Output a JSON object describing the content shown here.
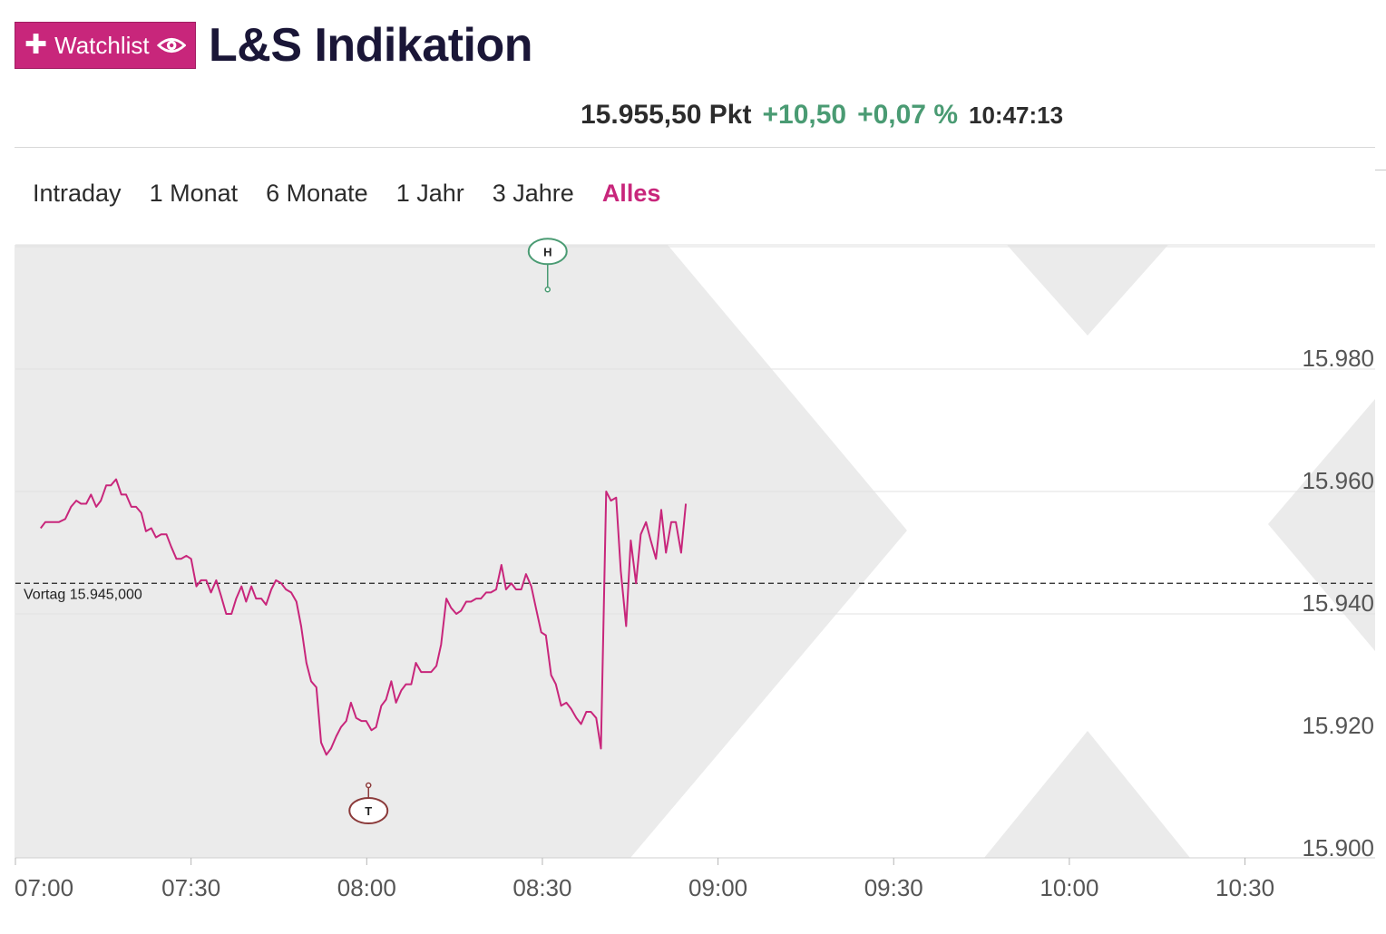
{
  "header": {
    "watchlist_label": "Watchlist",
    "title": "L&S Indikation",
    "accent_color": "#c8267b"
  },
  "quote": {
    "price": "15.955,50 Pkt",
    "change_abs": "+10,50",
    "change_pct": "+0,07 %",
    "time": "10:47:13",
    "positive_color": "#4a9b73"
  },
  "tabs": [
    {
      "label": "Intraday",
      "active": false
    },
    {
      "label": "1 Monat",
      "active": false
    },
    {
      "label": "6 Monate",
      "active": false
    },
    {
      "label": "1 Jahr",
      "active": false
    },
    {
      "label": "3 Jahre",
      "active": false
    },
    {
      "label": "Alles",
      "active": true
    }
  ],
  "chart_data": {
    "type": "line",
    "title": "",
    "xlabel": "",
    "ylabel": "",
    "x_ticks": [
      "07:00",
      "07:30",
      "08:00",
      "08:30",
      "09:00",
      "09:30",
      "10:00",
      "10:30"
    ],
    "y_ticks": [
      "15.900",
      "15.920",
      "15.940",
      "15.960",
      "15.980"
    ],
    "ylim": [
      15900,
      15990
    ],
    "xlim_minutes_from_start": [
      0,
      115
    ],
    "grid": true,
    "line_color": "#c8267b",
    "reference_line": {
      "label": "Vortag 15.945,000",
      "value": 15945
    },
    "markers": [
      {
        "label": "T",
        "meaning": "low",
        "x_minutes_from_start": 60.3,
        "value": 15912,
        "color": "#8b3a3a"
      },
      {
        "label": "H",
        "meaning": "high",
        "x_minutes_from_start": 90.9,
        "value": 15993,
        "color": "#4a9b73"
      }
    ],
    "series": [
      {
        "points": [
          [
            4.3,
            15954
          ],
          [
            5.1,
            15955
          ],
          [
            6.3,
            15955
          ],
          [
            7.4,
            15955
          ],
          [
            8.5,
            15955.5
          ],
          [
            9.5,
            15957.5
          ],
          [
            10.4,
            15958.5
          ],
          [
            11.2,
            15958
          ],
          [
            12.1,
            15958
          ],
          [
            12.9,
            15959.5
          ],
          [
            13.8,
            15957.5
          ],
          [
            14.6,
            15958.5
          ],
          [
            15.5,
            15961
          ],
          [
            16.3,
            15961
          ],
          [
            17.2,
            15962
          ],
          [
            18.1,
            15959.5
          ],
          [
            18.9,
            15959.5
          ],
          [
            19.8,
            15957.5
          ],
          [
            20.6,
            15957.5
          ],
          [
            21.5,
            15956.5
          ],
          [
            22.3,
            15953.5
          ],
          [
            23.2,
            15954
          ],
          [
            24.0,
            15952.5
          ],
          [
            24.9,
            15953
          ],
          [
            25.8,
            15953
          ],
          [
            26.6,
            15951
          ],
          [
            27.5,
            15949
          ],
          [
            28.3,
            15949
          ],
          [
            29.2,
            15949.5
          ],
          [
            30.0,
            15949
          ],
          [
            30.9,
            15944.5
          ],
          [
            31.7,
            15945.5
          ],
          [
            32.6,
            15945.5
          ],
          [
            33.4,
            15943.5
          ],
          [
            34.3,
            15945.5
          ],
          [
            35.1,
            15943
          ],
          [
            36.0,
            15940
          ],
          [
            36.9,
            15940
          ],
          [
            37.7,
            15942.5
          ],
          [
            38.6,
            15944.5
          ],
          [
            39.4,
            15942
          ],
          [
            40.3,
            15944.5
          ],
          [
            41.1,
            15942.5
          ],
          [
            42.0,
            15942.5
          ],
          [
            42.8,
            15941.5
          ],
          [
            43.7,
            15944
          ],
          [
            44.5,
            15945.5
          ],
          [
            45.4,
            15945
          ],
          [
            46.2,
            15944
          ],
          [
            47.1,
            15943.5
          ],
          [
            48.0,
            15942
          ],
          [
            48.8,
            15938
          ],
          [
            49.7,
            15932
          ],
          [
            50.5,
            15929
          ],
          [
            51.4,
            15928
          ],
          [
            52.2,
            15919
          ],
          [
            53.1,
            15917
          ],
          [
            53.9,
            15918
          ],
          [
            54.8,
            15920
          ],
          [
            55.6,
            15921.5
          ],
          [
            56.5,
            15922.5
          ],
          [
            57.3,
            15925.5
          ],
          [
            58.2,
            15923
          ],
          [
            59.1,
            15922.5
          ],
          [
            59.9,
            15922.5
          ],
          [
            60.8,
            15921
          ],
          [
            61.6,
            15921.5
          ],
          [
            62.5,
            15925
          ],
          [
            63.3,
            15926
          ],
          [
            64.2,
            15929
          ],
          [
            65.0,
            15925.5
          ],
          [
            65.9,
            15927.5
          ],
          [
            66.7,
            15928.5
          ],
          [
            67.6,
            15928.5
          ],
          [
            68.4,
            15932
          ],
          [
            69.3,
            15930.5
          ],
          [
            70.2,
            15930.5
          ],
          [
            71.0,
            15930.5
          ],
          [
            71.9,
            15931.5
          ],
          [
            72.7,
            15935
          ],
          [
            73.6,
            15942.5
          ],
          [
            74.4,
            15941
          ],
          [
            75.3,
            15940
          ],
          [
            76.1,
            15940.5
          ],
          [
            77.0,
            15942
          ],
          [
            77.8,
            15942
          ],
          [
            78.7,
            15942.5
          ],
          [
            79.5,
            15942.5
          ],
          [
            80.4,
            15943.5
          ],
          [
            81.2,
            15943.5
          ],
          [
            82.1,
            15944
          ],
          [
            83.0,
            15948
          ],
          [
            83.8,
            15944
          ],
          [
            84.7,
            15945
          ],
          [
            85.5,
            15944
          ],
          [
            86.4,
            15944
          ],
          [
            87.2,
            15946.5
          ],
          [
            88.1,
            15944.5
          ],
          [
            88.9,
            15941
          ],
          [
            89.8,
            15937
          ],
          [
            90.6,
            15936.5
          ],
          [
            91.5,
            15930
          ],
          [
            92.3,
            15928.5
          ],
          [
            93.2,
            15925
          ],
          [
            94.1,
            15925.5
          ],
          [
            94.9,
            15924.5
          ],
          [
            95.8,
            15923
          ],
          [
            96.6,
            15922
          ],
          [
            97.5,
            15924
          ],
          [
            98.3,
            15924
          ],
          [
            99.2,
            15923
          ],
          [
            100.0,
            15918
          ],
          [
            100.9,
            15960
          ],
          [
            101.7,
            15958.5
          ],
          [
            102.6,
            15959
          ],
          [
            103.4,
            15947
          ],
          [
            104.3,
            15938
          ],
          [
            105.1,
            15952
          ],
          [
            106.0,
            15945
          ],
          [
            106.8,
            15953
          ],
          [
            107.7,
            15955
          ],
          [
            108.5,
            15952
          ],
          [
            109.4,
            15949
          ],
          [
            110.3,
            15957
          ],
          [
            111.1,
            15950
          ],
          [
            112.0,
            15955
          ],
          [
            112.8,
            15955
          ],
          [
            113.7,
            15950
          ],
          [
            114.5,
            15958
          ]
        ]
      }
    ]
  }
}
